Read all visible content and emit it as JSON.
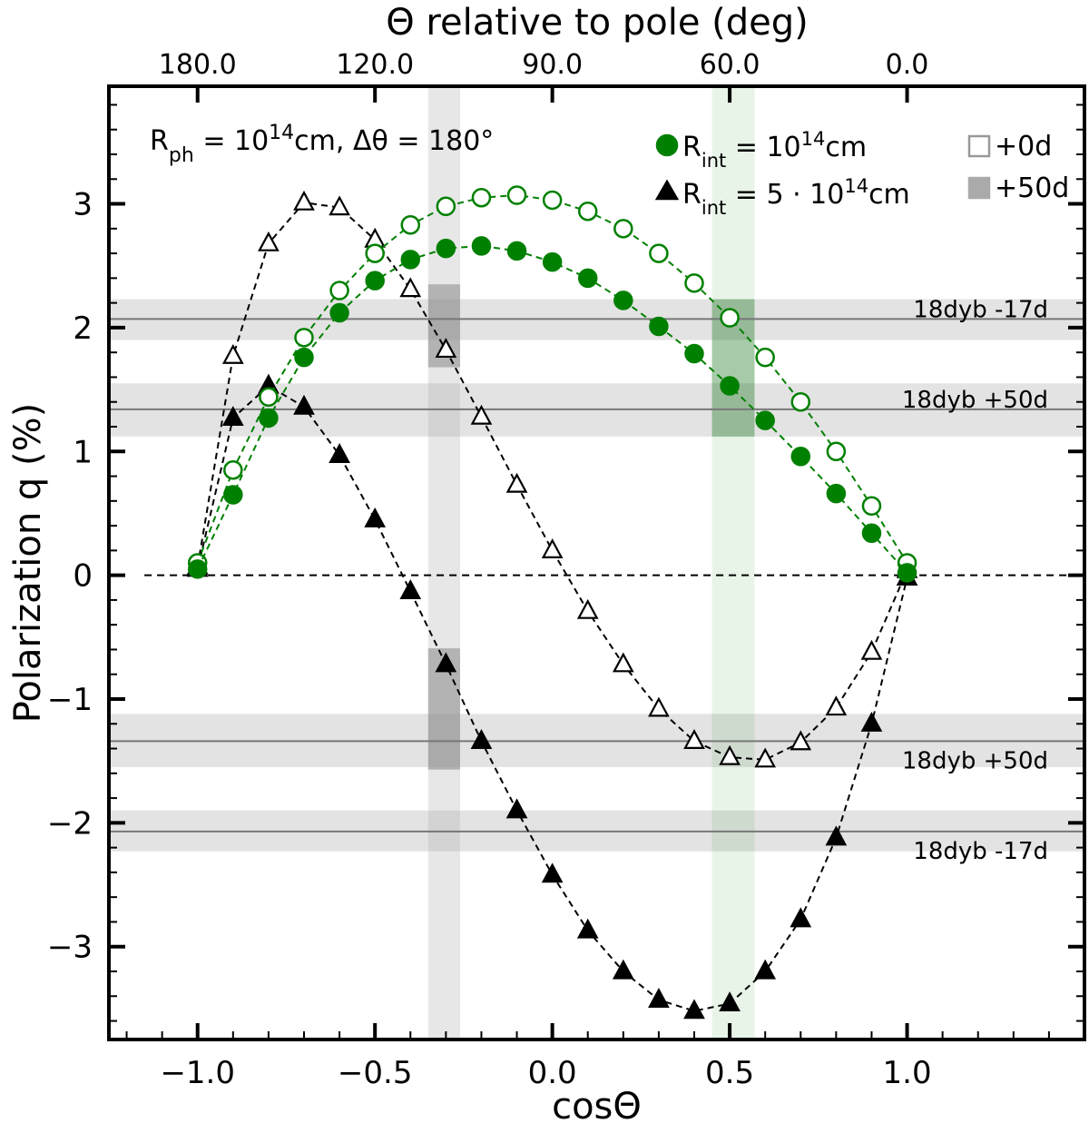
{
  "chart_data": {
    "type": "scatter",
    "xlabel": "cosΘ",
    "ylabel": "Polarization q (%)",
    "top_axis_label": "Θ relative to pole (deg)",
    "xlim": [
      -1.25,
      1.5
    ],
    "ylim": [
      -3.75,
      3.95
    ],
    "x_ticks": [
      -1.0,
      -0.5,
      0.0,
      0.5,
      1.0
    ],
    "x_tick_labels": [
      "−1.0",
      "−0.5",
      "0.0",
      "0.5",
      "1.0"
    ],
    "y_ticks": [
      -3,
      -2,
      -1,
      0,
      1,
      2,
      3
    ],
    "y_tick_labels": [
      "−3",
      "−2",
      "−1",
      "0",
      "1",
      "2",
      "3"
    ],
    "top_ticks_deg": [
      180,
      120,
      90,
      60,
      0
    ],
    "top_tick_labels": [
      "180.0",
      "120.0",
      "90.0",
      "60.0",
      "0.0"
    ],
    "annotation": {
      "prefix": "R",
      "sub": "ph",
      "mid": " = 10",
      "sup": "14",
      "suffix": "cm, Δθ = 180°"
    },
    "legend": {
      "marker_entries": [
        {
          "prefix": "R",
          "sub": "int",
          "value": " = 10",
          "sup": "14",
          "unit": "cm",
          "marker": "circle",
          "color": "#008000"
        },
        {
          "prefix": "R",
          "sub": "int",
          "value": " = 5 · 10",
          "sup": "14",
          "unit": "cm",
          "marker": "triangle",
          "color": "#000000"
        }
      ],
      "epoch_entries": [
        {
          "label": "+0d",
          "style": "open"
        },
        {
          "label": "+50d",
          "style": "filled"
        }
      ]
    },
    "reference_lines": [
      {
        "label": "18dyb -17d",
        "y": 2.07,
        "low": 1.9,
        "high": 2.23
      },
      {
        "label": "18dyb +50d",
        "y": 1.34,
        "low": 1.12,
        "high": 1.55
      },
      {
        "label": "18dyb +50d",
        "y": -1.34,
        "low": -1.55,
        "high": -1.12
      },
      {
        "label": "18dyb -17d",
        "y": -2.07,
        "low": -2.23,
        "high": -1.9
      }
    ],
    "vertical_bands": [
      {
        "xmin": -0.35,
        "xmax": -0.26,
        "color": "#aaaaaa"
      },
      {
        "xmin": 0.45,
        "xmax": 0.57,
        "color": "#008000"
      }
    ],
    "overlap_boxes": [
      {
        "xmin": -0.35,
        "xmax": -0.26,
        "ymin": 1.68,
        "ymax": 2.35,
        "color": "#888888"
      },
      {
        "xmin": -0.35,
        "xmax": -0.26,
        "ymin": -1.57,
        "ymax": -0.59,
        "color": "#888888"
      },
      {
        "xmin": 0.45,
        "xmax": 0.57,
        "ymin": 1.12,
        "ymax": 2.23,
        "color": "#2e7d32"
      }
    ],
    "x": [
      -1.0,
      -0.9,
      -0.8,
      -0.7,
      -0.6,
      -0.5,
      -0.4,
      -0.3,
      -0.2,
      -0.1,
      0.0,
      0.1,
      0.2,
      0.3,
      0.4,
      0.5,
      0.6,
      0.7,
      0.8,
      0.9,
      1.0
    ],
    "series": [
      {
        "name": "R_int = 10^14 cm, +0d",
        "marker": "circle",
        "filled": false,
        "color": "#008000",
        "values": [
          0.1,
          0.85,
          1.44,
          1.92,
          2.3,
          2.6,
          2.83,
          2.98,
          3.05,
          3.07,
          3.03,
          2.94,
          2.8,
          2.6,
          2.36,
          2.08,
          1.76,
          1.4,
          1.0,
          0.56,
          0.1
        ]
      },
      {
        "name": "R_int = 10^14 cm, +50d",
        "marker": "circle",
        "filled": true,
        "color": "#008000",
        "values": [
          0.05,
          0.65,
          1.27,
          1.76,
          2.12,
          2.38,
          2.55,
          2.64,
          2.66,
          2.62,
          2.53,
          2.4,
          2.22,
          2.01,
          1.79,
          1.53,
          1.25,
          0.96,
          0.66,
          0.34,
          0.02
        ]
      },
      {
        "name": "R_int = 5·10^14 cm, +0d",
        "marker": "triangle",
        "filled": false,
        "color": "#000000",
        "values": [
          0.07,
          1.77,
          2.68,
          3.01,
          2.97,
          2.71,
          2.31,
          1.82,
          1.28,
          0.73,
          0.2,
          -0.29,
          -0.72,
          -1.08,
          -1.34,
          -1.47,
          -1.49,
          -1.35,
          -1.07,
          -0.62,
          0.04
        ]
      },
      {
        "name": "R_int = 5·10^14 cm, +50d",
        "marker": "triangle",
        "filled": true,
        "color": "#000000",
        "values": [
          0.05,
          1.27,
          1.53,
          1.36,
          0.97,
          0.45,
          -0.13,
          -0.72,
          -1.34,
          -1.9,
          -2.42,
          -2.87,
          -3.2,
          -3.43,
          -3.52,
          -3.46,
          -3.2,
          -2.78,
          -2.12,
          -1.2,
          -0.02
        ]
      }
    ]
  }
}
